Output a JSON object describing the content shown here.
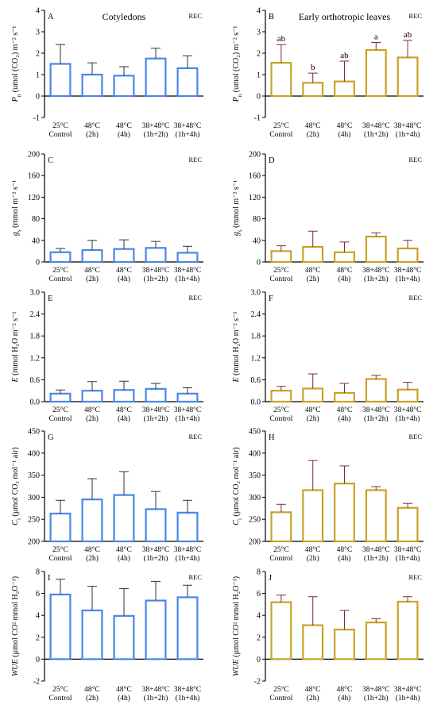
{
  "colors": {
    "cotyledon_bar": "#4a86e8",
    "leaf_bar": "#c9a227",
    "error_cotyledon": "#333333",
    "error_leaf": "#7a2a4a",
    "axis": "#000000",
    "xlabel_48": "#7a1f3d",
    "xlabel_control": "#1a6b3c"
  },
  "x_labels": [
    [
      "25°C",
      "Control"
    ],
    [
      "48°C",
      "(2h)"
    ],
    [
      "48°C",
      "(4h)"
    ],
    [
      "38+48°C",
      "(1h+2h)"
    ],
    [
      "38+48°C",
      "(1h+4h)"
    ]
  ],
  "chart_data": [
    {
      "type": "bar",
      "letter": "A",
      "title": "Cotyledons",
      "tag": "REC",
      "ylabel_main": "P",
      "ylabel_sub": "n",
      "ylabel_rest": " (umol (CO₂) m⁻² s⁻¹",
      "ylim": [
        -1,
        4
      ],
      "yticks": [
        -1,
        0,
        1,
        2,
        3,
        4
      ],
      "values": [
        1.5,
        1.0,
        0.95,
        1.75,
        1.3
      ],
      "errors": [
        0.9,
        0.55,
        0.42,
        0.48,
        0.58
      ],
      "significance": [],
      "series_color": "cotyledon"
    },
    {
      "type": "bar",
      "letter": "B",
      "title": "Early orthotropic leaves",
      "tag": "REC",
      "ylabel_main": "P",
      "ylabel_sub": "n",
      "ylabel_rest": " (umol (CO₂) m⁻² s⁻¹",
      "ylim": [
        -1,
        4
      ],
      "yticks": [
        -1,
        0,
        1,
        2,
        3,
        4
      ],
      "values": [
        1.55,
        0.62,
        0.68,
        2.15,
        1.8
      ],
      "errors": [
        0.85,
        0.45,
        0.95,
        0.35,
        0.8
      ],
      "significance": [
        "ab",
        "b",
        "ab",
        "a",
        "ab"
      ],
      "series_color": "leaf"
    },
    {
      "type": "bar",
      "letter": "C",
      "title": "",
      "tag": "REC",
      "ylabel_main": "g",
      "ylabel_sub": "s",
      "ylabel_rest": " (mmol m⁻² s⁻¹",
      "ylim": [
        0,
        200
      ],
      "yticks": [
        0,
        40,
        80,
        120,
        160,
        200
      ],
      "values": [
        18,
        22,
        24,
        26,
        17
      ],
      "errors": [
        7,
        18,
        17,
        12,
        12
      ],
      "significance": [],
      "series_color": "cotyledon"
    },
    {
      "type": "bar",
      "letter": "D",
      "title": "",
      "tag": "REC",
      "ylabel_main": "g",
      "ylabel_sub": "s",
      "ylabel_rest": " (mmol m⁻² s⁻¹",
      "ylim": [
        0,
        200
      ],
      "yticks": [
        0,
        40,
        80,
        120,
        160,
        200
      ],
      "values": [
        20,
        28,
        18,
        47,
        25
      ],
      "errors": [
        10,
        29,
        19,
        7,
        15
      ],
      "significance": [],
      "series_color": "leaf"
    },
    {
      "type": "bar",
      "letter": "E",
      "title": "",
      "tag": "REC",
      "ylabel_main": "E",
      "ylabel_sub": "",
      "ylabel_rest": " (mmol H₂O m⁻² s⁻¹",
      "ylim": [
        0,
        3.0
      ],
      "yticks": [
        0.0,
        0.6,
        1.2,
        1.8,
        2.4,
        3.0
      ],
      "values": [
        0.22,
        0.3,
        0.32,
        0.35,
        0.22
      ],
      "errors": [
        0.1,
        0.25,
        0.24,
        0.15,
        0.16
      ],
      "significance": [],
      "series_color": "cotyledon"
    },
    {
      "type": "bar",
      "letter": "F",
      "title": "",
      "tag": "REC",
      "ylabel_main": "E",
      "ylabel_sub": "",
      "ylabel_rest": " (mmol H₂O m⁻² s⁻¹",
      "ylim": [
        0,
        3.0
      ],
      "yticks": [
        0.0,
        0.6,
        1.2,
        1.8,
        2.4,
        3.0
      ],
      "values": [
        0.3,
        0.36,
        0.24,
        0.62,
        0.33
      ],
      "errors": [
        0.12,
        0.4,
        0.26,
        0.1,
        0.2
      ],
      "significance": [],
      "series_color": "leaf"
    },
    {
      "type": "bar",
      "letter": "G",
      "title": "",
      "tag": "REC",
      "ylabel_main": "C",
      "ylabel_sub": "i",
      "ylabel_rest": " (µmol CO₂ mol⁻¹ air)",
      "ylim": [
        200,
        450
      ],
      "yticks": [
        200,
        250,
        300,
        350,
        400,
        450
      ],
      "values": [
        263,
        295,
        305,
        273,
        265
      ],
      "errors": [
        30,
        47,
        53,
        40,
        28
      ],
      "significance": [],
      "series_color": "cotyledon"
    },
    {
      "type": "bar",
      "letter": "H",
      "title": "",
      "tag": "REC",
      "ylabel_main": "C",
      "ylabel_sub": "i",
      "ylabel_rest": " (µmol CO₂ mol⁻¹ air)",
      "ylim": [
        200,
        450
      ],
      "yticks": [
        200,
        250,
        300,
        350,
        400,
        450
      ],
      "values": [
        266,
        316,
        331,
        316,
        276
      ],
      "errors": [
        18,
        67,
        40,
        8,
        10
      ],
      "significance": [],
      "series_color": "leaf"
    },
    {
      "type": "bar",
      "letter": "I",
      "title": "",
      "tag": "REC",
      "ylabel_main": "WUE",
      "ylabel_sub": "",
      "ylabel_rest": " (µmol CO² mmol H₂O⁻¹)",
      "ylim": [
        -2,
        8
      ],
      "yticks": [
        -2,
        0,
        2,
        4,
        6,
        8
      ],
      "values": [
        5.9,
        4.45,
        3.95,
        5.35,
        5.65
      ],
      "errors": [
        1.4,
        2.2,
        2.5,
        1.75,
        1.1
      ],
      "significance": [],
      "series_color": "cotyledon"
    },
    {
      "type": "bar",
      "letter": "J",
      "title": "",
      "tag": "REC",
      "ylabel_main": "WUE",
      "ylabel_sub": "",
      "ylabel_rest": " (µmol CO² mmol H₂O⁻¹)",
      "ylim": [
        -2,
        8
      ],
      "yticks": [
        -2,
        0,
        2,
        4,
        6,
        8
      ],
      "values": [
        5.2,
        3.1,
        2.7,
        3.35,
        5.25
      ],
      "errors": [
        0.65,
        2.6,
        1.75,
        0.35,
        0.45
      ],
      "significance": [],
      "series_color": "leaf"
    }
  ]
}
